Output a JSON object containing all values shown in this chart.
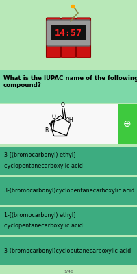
{
  "bg_color": "#b8e8b8",
  "timer_text": "14:57",
  "question": "What is the IUPAC name of the following\ncompound?",
  "question_fontsize": 6.2,
  "question_bold": true,
  "molecule_box_color": "#f8f8f8",
  "zoom_box_color": "#3ec93e",
  "answers": [
    "3-[(bromocarbonyl) ethyl]\ncyclopentanecarboxylic acid",
    "3-(bromocarbonyl)cyclopentanecarboxylic acid",
    "1-[(bromocarbonyl) ethyl]\ncyclopentanecarboxylic acid",
    "3-(bromocarbonyl)cyclobutanecarboxylic acid"
  ],
  "answer_bg_color": "#3dac80",
  "answer_fontsize": 5.8,
  "answer_text_color": "#000000",
  "timer_bg": "#888888",
  "timer_fg": "#ff2222",
  "bomb_red": "#cc1111",
  "bomb_dark_red": "#880000",
  "bomb_gray": "#aaaaaa",
  "bomb_dark": "#333333",
  "footer_text": "1/46",
  "footer_fontsize": 4.5,
  "footer_color": "#555555"
}
